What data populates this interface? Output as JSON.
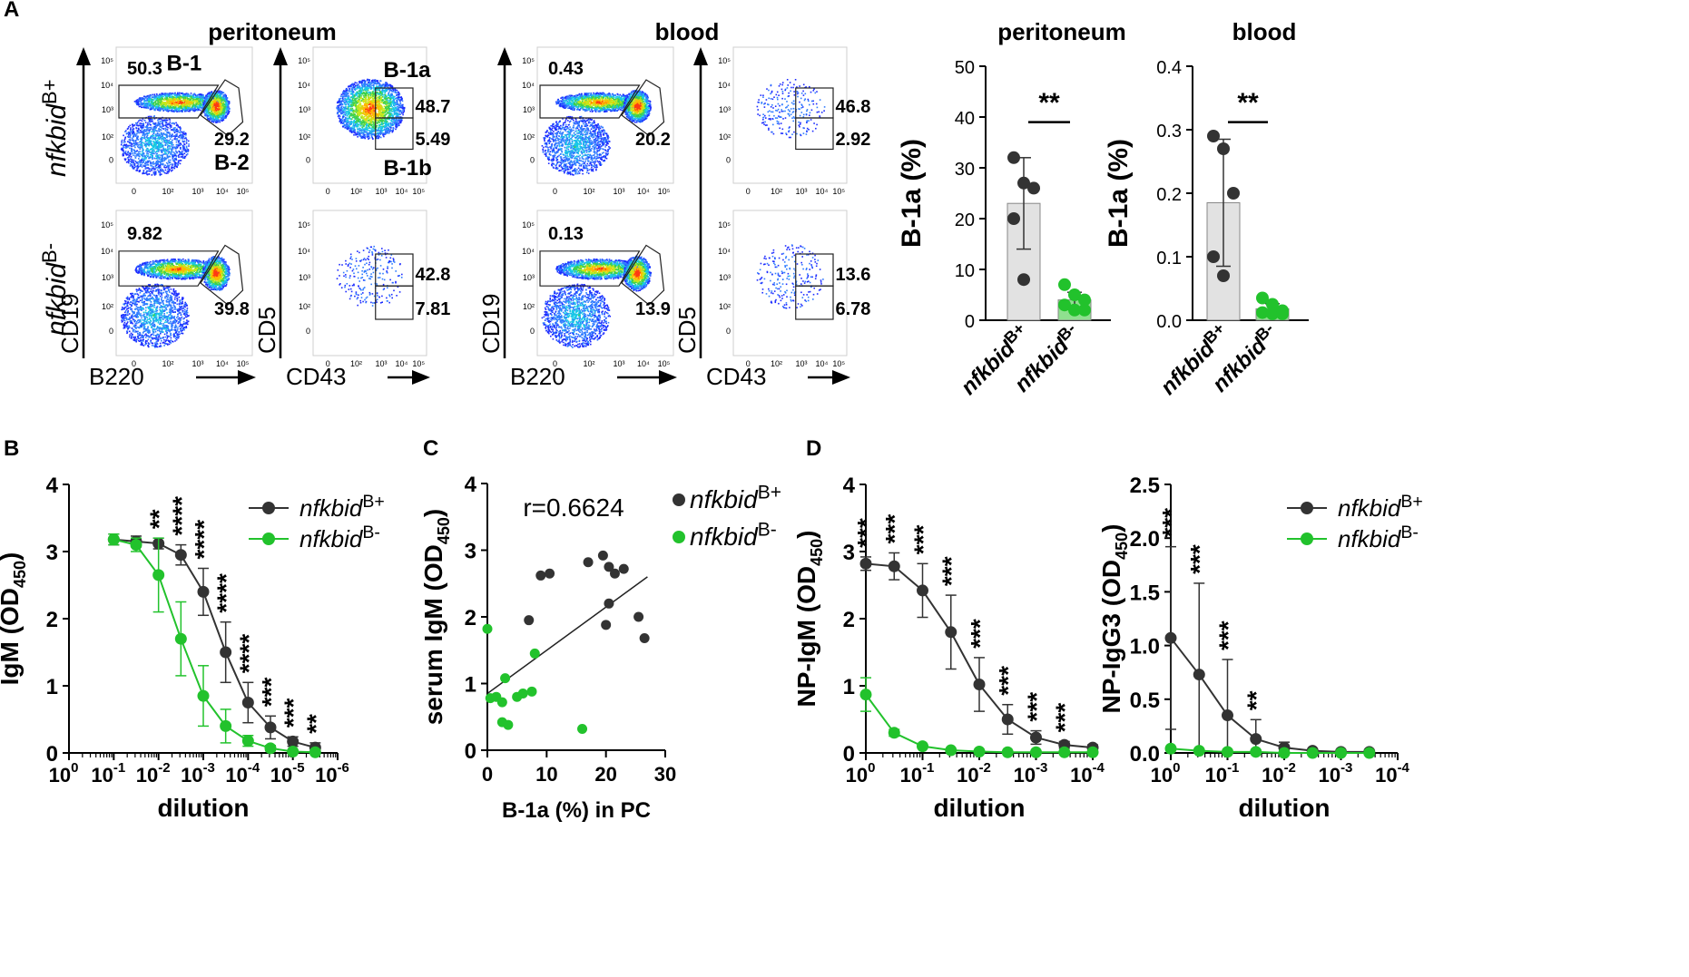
{
  "colors": {
    "black": "#333333",
    "green": "#22c22c",
    "bar_gray": "#e2e2e2"
  },
  "chart_data": [
    {
      "id": "A-flow",
      "type": "table",
      "panel": "A",
      "rows": [
        "nfkbid B+",
        "nfkbid B-"
      ],
      "groups": [
        {
          "title": "peritoneum",
          "first_plot": {
            "xlabel": "B220",
            "ylabel": "CD19",
            "gate_labels": [
              "B-1",
              "B-2"
            ],
            "values": [
              [
                "50.3",
                "29.2"
              ],
              [
                "9.82",
                "39.8"
              ]
            ]
          },
          "second_plot": {
            "xlabel": "CD43",
            "ylabel": "CD5",
            "gate_labels": [
              "B-1a",
              "B-1b"
            ],
            "values": [
              [
                "48.7",
                "5.49"
              ],
              [
                "42.8",
                "7.81"
              ]
            ]
          }
        },
        {
          "title": "blood",
          "first_plot": {
            "xlabel": "B220",
            "ylabel": "CD19",
            "values": [
              [
                "0.43",
                "20.2"
              ],
              [
                "0.13",
                "13.9"
              ]
            ]
          },
          "second_plot": {
            "xlabel": "CD43",
            "ylabel": "CD5",
            "values": [
              [
                "46.8",
                "2.92"
              ],
              [
                "13.6",
                "6.78"
              ]
            ]
          }
        }
      ]
    },
    {
      "id": "A-bar-peritoneum",
      "type": "bar",
      "title": "peritoneum",
      "ylabel": "B-1a (%)",
      "ylim": [
        0,
        50
      ],
      "yticks": [
        "0",
        "10",
        "20",
        "30",
        "40",
        "50"
      ],
      "categories": [
        "nfkbid B+",
        "nfkbid B-"
      ],
      "means": [
        23,
        4
      ],
      "errors": [
        9,
        1.5
      ],
      "points": [
        [
          32,
          27,
          26,
          20,
          8
        ],
        [
          7,
          5,
          4,
          3,
          2,
          2
        ]
      ],
      "significance": "**"
    },
    {
      "id": "A-bar-blood",
      "type": "bar",
      "title": "blood",
      "ylabel": "B-1a (%)",
      "ylim": [
        0,
        0.4
      ],
      "yticks": [
        "0.0",
        "0.1",
        "0.2",
        "0.3",
        "0.4"
      ],
      "categories": [
        "nfkbid B+",
        "nfkbid B-"
      ],
      "means": [
        0.185,
        0.018
      ],
      "errors": [
        0.1,
        0.008
      ],
      "points": [
        [
          0.29,
          0.27,
          0.2,
          0.1,
          0.07
        ],
        [
          0.035,
          0.025,
          0.015,
          0.012,
          0.01,
          0.01
        ]
      ],
      "significance": "**"
    },
    {
      "id": "B",
      "panel": "B",
      "type": "line",
      "xlabel": "dilution",
      "ylabel": "IgM (OD450)",
      "ylim": [
        0,
        4
      ],
      "yticks": [
        "0",
        "1",
        "2",
        "3",
        "4"
      ],
      "xlim": [
        0,
        -6
      ],
      "xtick_exps": [
        "0",
        "-1",
        "-2",
        "-3",
        "-4",
        "-5",
        "-6"
      ],
      "x": [
        -1,
        -1.5,
        -2,
        -2.5,
        -3,
        -3.5,
        -4,
        -4.5,
        -5,
        -5.5
      ],
      "series": [
        {
          "name": "nfkbid B+",
          "values": [
            3.18,
            3.15,
            3.12,
            2.95,
            2.4,
            1.5,
            0.75,
            0.38,
            0.17,
            0.08
          ],
          "errors": [
            0.08,
            0.08,
            0.08,
            0.15,
            0.35,
            0.45,
            0.3,
            0.17,
            0.07,
            0.07
          ]
        },
        {
          "name": "nfkbid B-",
          "values": [
            3.18,
            3.1,
            2.65,
            1.7,
            0.85,
            0.4,
            0.18,
            0.07,
            0.02,
            0.01
          ],
          "errors": [
            0.08,
            0.1,
            0.55,
            0.55,
            0.45,
            0.25,
            0.08,
            0.04,
            0.02,
            0.01
          ]
        }
      ],
      "significance": [
        "",
        "",
        "**",
        "****",
        "****",
        "****",
        "****",
        "***",
        "***",
        "**"
      ]
    },
    {
      "id": "C",
      "panel": "C",
      "type": "scatter",
      "xlabel": "B-1a (%) in PC",
      "ylabel": "serum IgM (OD450)",
      "xlim": [
        0,
        30
      ],
      "ylim": [
        0,
        4
      ],
      "xticks": [
        "0",
        "10",
        "20",
        "30"
      ],
      "yticks": [
        "0",
        "1",
        "2",
        "3",
        "4"
      ],
      "annotation": "r=0.6624",
      "fit": {
        "x": [
          0,
          27
        ],
        "y": [
          0.85,
          2.6
        ]
      },
      "series": [
        {
          "name": "nfkbid B+",
          "points": [
            [
              7,
              1.95
            ],
            [
              9,
              2.62
            ],
            [
              10.5,
              2.65
            ],
            [
              17,
              2.82
            ],
            [
              19.5,
              2.92
            ],
            [
              20.5,
              2.75
            ],
            [
              21.5,
              2.65
            ],
            [
              23,
              2.72
            ],
            [
              20.5,
              2.2
            ],
            [
              20,
              1.88
            ],
            [
              25.5,
              2.0
            ],
            [
              26.5,
              1.68
            ]
          ]
        },
        {
          "name": "nfkbid B-",
          "points": [
            [
              0,
              1.82
            ],
            [
              0.5,
              0.78
            ],
            [
              1.5,
              0.8
            ],
            [
              2.5,
              0.72
            ],
            [
              3,
              1.08
            ],
            [
              2.5,
              0.42
            ],
            [
              3.5,
              0.38
            ],
            [
              5,
              0.8
            ],
            [
              6,
              0.85
            ],
            [
              7.5,
              0.88
            ],
            [
              8,
              1.45
            ],
            [
              16,
              0.32
            ]
          ]
        }
      ]
    },
    {
      "id": "D-IgM",
      "panel": "D",
      "type": "line",
      "xlabel": "dilution",
      "ylabel": "NP-IgM (OD450)",
      "ylim": [
        0,
        4
      ],
      "yticks": [
        "0",
        "1",
        "2",
        "3",
        "4"
      ],
      "xlim": [
        0,
        -4
      ],
      "xtick_exps": [
        "0",
        "-1",
        "-2",
        "-3",
        "-4"
      ],
      "x": [
        0,
        -0.5,
        -1,
        -1.5,
        -2,
        -2.5,
        -3,
        -3.5,
        -4
      ],
      "series": [
        {
          "name": "nfkbid B+",
          "values": [
            2.82,
            2.78,
            2.42,
            1.8,
            1.02,
            0.5,
            0.23,
            0.12,
            0.08
          ],
          "errors": [
            0.1,
            0.2,
            0.4,
            0.55,
            0.4,
            0.22,
            0.1,
            0.05,
            0.04
          ]
        },
        {
          "name": "nfkbid B-",
          "values": [
            0.87,
            0.3,
            0.1,
            0.04,
            0.02,
            0.01,
            0.01,
            0.01,
            0.01
          ],
          "errors": [
            0.25,
            0.05,
            0.03,
            0.02,
            0.01,
            0.01,
            0.01,
            0.01,
            0.01
          ]
        }
      ],
      "significance": [
        "***",
        "***",
        "***",
        "***",
        "***",
        "***",
        "***",
        "***",
        ""
      ]
    },
    {
      "id": "D-IgG3",
      "panel": "D",
      "type": "line",
      "xlabel": "dilution",
      "ylabel": "NP-IgG3 (OD450)",
      "ylim": [
        0,
        2.5
      ],
      "yticks": [
        "0.0",
        "0.5",
        "1.0",
        "1.5",
        "2.0",
        "2.5"
      ],
      "xlim": [
        0,
        -4
      ],
      "xtick_exps": [
        "0",
        "-1",
        "-2",
        "-3",
        "-4"
      ],
      "x": [
        0,
        -0.5,
        -1,
        -1.5,
        -2,
        -2.5,
        -3,
        -3.5
      ],
      "series": [
        {
          "name": "nfkbid B+",
          "values": [
            1.07,
            0.73,
            0.35,
            0.13,
            0.05,
            0.02,
            0.01,
            0.01
          ],
          "errors": [
            0.85,
            0.85,
            0.52,
            0.18,
            0.05,
            0.02,
            0.01,
            0.01
          ]
        },
        {
          "name": "nfkbid B-",
          "values": [
            0.04,
            0.02,
            0.01,
            0.01,
            0.0,
            0.0,
            0.0,
            0.0
          ],
          "errors": [
            0.02,
            0.01,
            0.01,
            0.0,
            0.0,
            0.0,
            0.0,
            0.0
          ]
        }
      ],
      "significance": [
        "***",
        "***",
        "***",
        "**",
        "",
        "",
        "",
        ""
      ]
    }
  ],
  "legend": {
    "base": "nfkbid",
    "plus": "B+",
    "minus": "B-"
  },
  "panel_letters": [
    "A",
    "B",
    "C",
    "D"
  ]
}
